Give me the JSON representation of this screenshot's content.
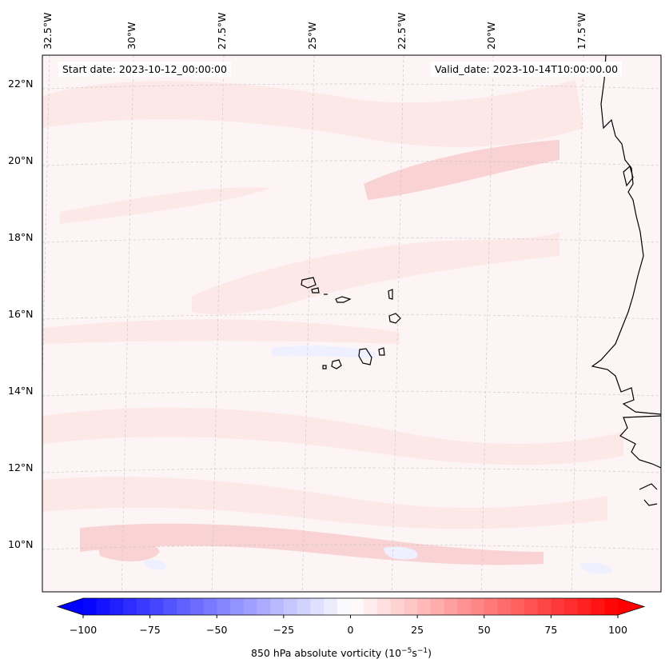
{
  "map": {
    "start_date": "Start date: 2023-10-12_00:00:00",
    "valid_date": "Valid_date: 2023-10-14T10:00:00.00",
    "lon_labels": [
      "32.5°W",
      "30°W",
      "27.5°W",
      "25°W",
      "22.5°W",
      "20°W",
      "17.5°W"
    ],
    "lat_labels": [
      "22°N",
      "20°N",
      "18°N",
      "16°N",
      "14°N",
      "12°N",
      "10°N"
    ],
    "field_colors": {
      "background": "#fdf5f5",
      "light_positive": "#fde8e8",
      "medium_positive": "#f9d3d3",
      "light_negative": "#eef0ff"
    },
    "gridline_color": "#c8c8c8",
    "coastline_color": "#000000"
  },
  "colorbar": {
    "label": "850 hPa absolute vorticity (10",
    "label_exp": "−5",
    "label_mid": "s",
    "label_exp2": "−1",
    "label_end": ")",
    "ticks": [
      "−100",
      "−75",
      "−50",
      "−25",
      "0",
      "25",
      "50",
      "75",
      "100"
    ],
    "min": -100,
    "max": 100,
    "colors": {
      "min": "#0000ff",
      "mid": "#ffffff",
      "max": "#ff0000"
    },
    "extend": "both"
  }
}
